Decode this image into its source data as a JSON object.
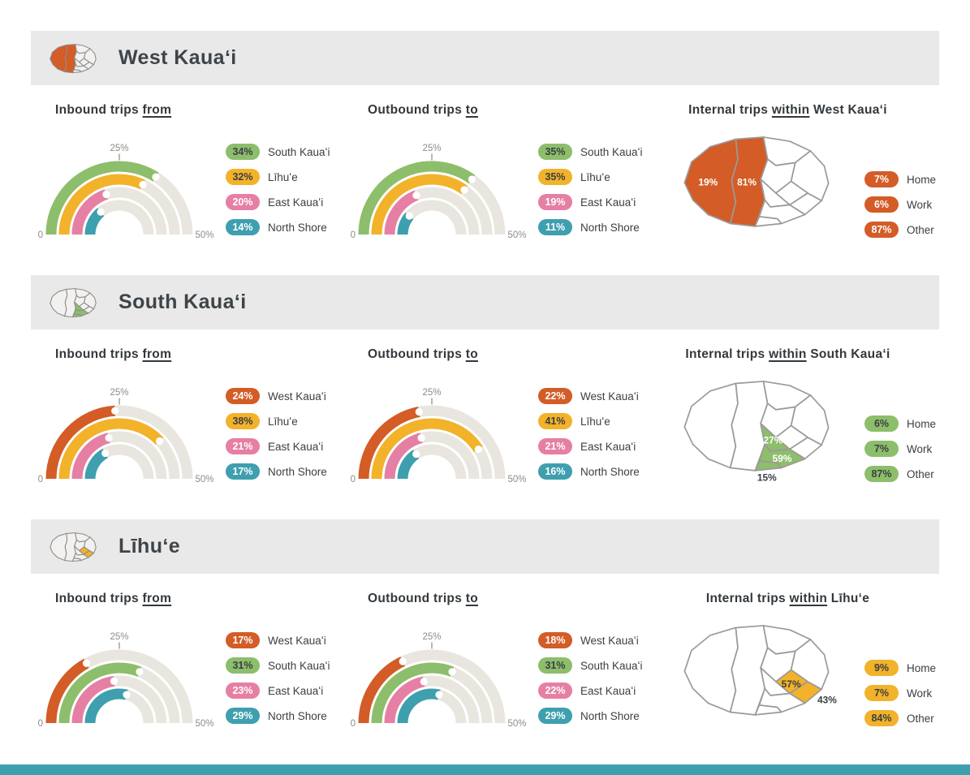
{
  "page": {
    "footer_color": "#3E9FAF",
    "header_bar_color": "#E9E9E9"
  },
  "gauge_axis": {
    "min_label": "0",
    "mid_label": "25%",
    "max_label": "50%",
    "max_value": 50
  },
  "region_colors": {
    "West Kauaʻi": "#D35C27",
    "South Kauaʻi": "#8DBE6B",
    "Līhuʻe": "#F2B22A",
    "East Kauaʻi": "#E67FA4",
    "North Shore": "#3E9FAF"
  },
  "sections": [
    {
      "title": "West Kauaʻi",
      "accent": "#D35C27",
      "inbound_heading": {
        "prefix": "Inbound trips ",
        "emphasis": "from"
      },
      "outbound_heading": {
        "prefix": "Outbound trips ",
        "emphasis": "to"
      },
      "internal_heading": {
        "prefix": "Internal trips ",
        "emphasis": "within",
        "suffix": " West Kauaʻi"
      }
    },
    {
      "title": "South Kauaʻi",
      "accent": "#8DBE6B",
      "inbound_heading": {
        "prefix": "Inbound trips ",
        "emphasis": "from"
      },
      "outbound_heading": {
        "prefix": "Outbound trips ",
        "emphasis": "to"
      },
      "internal_heading": {
        "prefix": "Internal trips ",
        "emphasis": "within",
        "suffix": " South Kauaʻi"
      }
    },
    {
      "title": "Līhuʻe",
      "accent": "#F2B22A",
      "inbound_heading": {
        "prefix": "Inbound trips ",
        "emphasis": "from"
      },
      "outbound_heading": {
        "prefix": "Outbound trips ",
        "emphasis": "to"
      },
      "internal_heading": {
        "prefix": "Internal trips ",
        "emphasis": "within",
        "suffix": " Līhuʻe"
      }
    }
  ],
  "chart_data": [
    {
      "type": "gauge",
      "title": "West Kauaʻi — Inbound trips from",
      "range": [
        0,
        50
      ],
      "tick_labels": [
        "0",
        "25%",
        "50%"
      ],
      "categories": [
        "South Kauaʻi",
        "Līhuʻe",
        "East Kauaʻi",
        "North Shore"
      ],
      "values": [
        34,
        32,
        20,
        14
      ],
      "labels": [
        "34%",
        "32%",
        "20%",
        "14%"
      ],
      "colors": [
        "#8DBE6B",
        "#F2B22A",
        "#E67FA4",
        "#3E9FAF"
      ]
    },
    {
      "type": "gauge",
      "title": "West Kauaʻi — Outbound trips to",
      "range": [
        0,
        50
      ],
      "tick_labels": [
        "0",
        "25%",
        "50%"
      ],
      "categories": [
        "South Kauaʻi",
        "Līhuʻe",
        "East Kauaʻi",
        "North Shore"
      ],
      "values": [
        35,
        35,
        19,
        11
      ],
      "labels": [
        "35%",
        "35%",
        "19%",
        "11%"
      ],
      "colors": [
        "#8DBE6B",
        "#F2B22A",
        "#E67FA4",
        "#3E9FAF"
      ]
    },
    {
      "type": "map-breakdown",
      "title": "Internal trips within West Kauaʻi",
      "highlight": [
        "W1",
        "W2"
      ],
      "sub_areas": [
        {
          "label": "19%",
          "district": "W1",
          "label_color": "#FFFFFF"
        },
        {
          "label": "81%",
          "district": "W2",
          "label_color": "#FFFFFF"
        }
      ],
      "legend": [
        {
          "pct": "7%",
          "label": "Home"
        },
        {
          "pct": "6%",
          "label": "Work"
        },
        {
          "pct": "87%",
          "label": "Other"
        }
      ]
    },
    {
      "type": "gauge",
      "title": "South Kauaʻi — Inbound trips from",
      "range": [
        0,
        50
      ],
      "tick_labels": [
        "0",
        "25%",
        "50%"
      ],
      "categories": [
        "West Kauaʻi",
        "Līhuʻe",
        "East Kauaʻi",
        "North Shore"
      ],
      "values": [
        24,
        38,
        21,
        17
      ],
      "labels": [
        "24%",
        "38%",
        "21%",
        "17%"
      ],
      "colors": [
        "#D35C27",
        "#F2B22A",
        "#E67FA4",
        "#3E9FAF"
      ]
    },
    {
      "type": "gauge",
      "title": "South Kauaʻi — Outbound trips to",
      "range": [
        0,
        50
      ],
      "tick_labels": [
        "0",
        "25%",
        "50%"
      ],
      "categories": [
        "West Kauaʻi",
        "Līhuʻe",
        "East Kauaʻi",
        "North Shore"
      ],
      "values": [
        22,
        41,
        21,
        16
      ],
      "labels": [
        "22%",
        "41%",
        "21%",
        "16%"
      ],
      "colors": [
        "#D35C27",
        "#F2B22A",
        "#E67FA4",
        "#3E9FAF"
      ]
    },
    {
      "type": "map-breakdown",
      "title": "Internal trips within South Kauaʻi",
      "highlight": [
        "S1",
        "S2",
        "S3"
      ],
      "sub_areas": [
        {
          "label": "27%",
          "district": "S1",
          "label_color": "#FFFFFF"
        },
        {
          "label": "59%",
          "district": "S2",
          "label_color": "#FFFFFF"
        },
        {
          "label": "15%",
          "district": "S3",
          "label_color": "#3A3F43"
        }
      ],
      "legend": [
        {
          "pct": "6%",
          "label": "Home"
        },
        {
          "pct": "7%",
          "label": "Work"
        },
        {
          "pct": "87%",
          "label": "Other"
        }
      ]
    },
    {
      "type": "gauge",
      "title": "Līhuʻe — Inbound trips from",
      "range": [
        0,
        50
      ],
      "tick_labels": [
        "0",
        "25%",
        "50%"
      ],
      "categories": [
        "West Kauaʻi",
        "South Kauaʻi",
        "East Kauaʻi",
        "North Shore"
      ],
      "values": [
        17,
        31,
        23,
        29
      ],
      "labels": [
        "17%",
        "31%",
        "23%",
        "29%"
      ],
      "colors": [
        "#D35C27",
        "#8DBE6B",
        "#E67FA4",
        "#3E9FAF"
      ]
    },
    {
      "type": "gauge",
      "title": "Līhuʻe — Outbound trips to",
      "range": [
        0,
        50
      ],
      "tick_labels": [
        "0",
        "25%",
        "50%"
      ],
      "categories": [
        "West Kauaʻi",
        "South Kauaʻi",
        "East Kauaʻi",
        "North Shore"
      ],
      "values": [
        18,
        31,
        22,
        29
      ],
      "labels": [
        "18%",
        "31%",
        "22%",
        "29%"
      ],
      "colors": [
        "#D35C27",
        "#8DBE6B",
        "#E67FA4",
        "#3E9FAF"
      ]
    },
    {
      "type": "map-breakdown",
      "title": "Internal trips within Līhuʻe",
      "highlight": [
        "L1",
        "L2"
      ],
      "sub_areas": [
        {
          "label": "57%",
          "district": "L1",
          "label_color": "#3A3F43"
        },
        {
          "label": "43%",
          "district": "L2",
          "label_color": "#3A3F43"
        }
      ],
      "legend": [
        {
          "pct": "9%",
          "label": "Home"
        },
        {
          "pct": "7%",
          "label": "Work"
        },
        {
          "pct": "84%",
          "label": "Other"
        }
      ]
    }
  ]
}
